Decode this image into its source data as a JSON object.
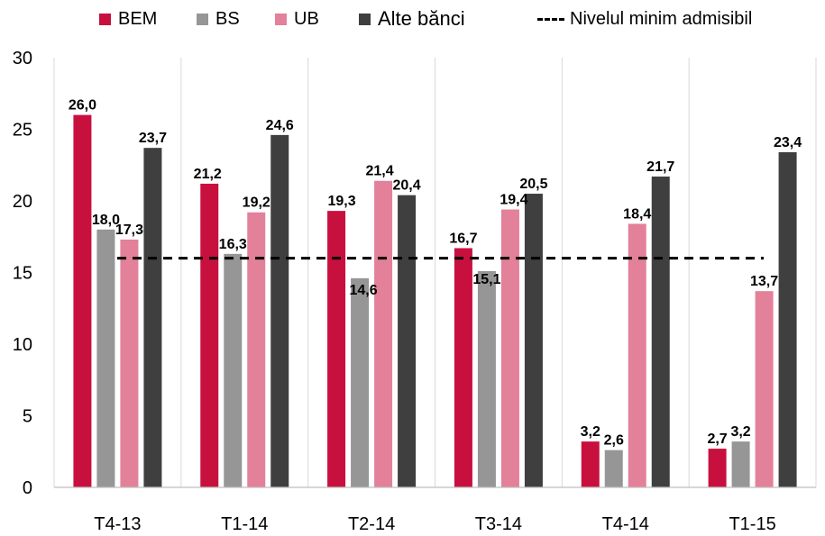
{
  "chart_data": {
    "type": "bar",
    "categories": [
      "T4-13",
      "T1-14",
      "T2-14",
      "T3-14",
      "T4-14",
      "T1-15"
    ],
    "series": [
      {
        "name": "BEM",
        "color": "#c8103e",
        "values": [
          26.0,
          21.2,
          19.3,
          16.7,
          3.2,
          2.7
        ]
      },
      {
        "name": "BS",
        "color": "#969696",
        "values": [
          18.0,
          16.3,
          14.6,
          15.1,
          2.6,
          3.2
        ]
      },
      {
        "name": "UB",
        "color": "#e3809a",
        "values": [
          17.3,
          19.2,
          21.4,
          19.4,
          18.4,
          13.7
        ]
      },
      {
        "name": "Alte bănci",
        "color": "#3f3f3f",
        "values": [
          23.7,
          24.6,
          20.4,
          20.5,
          21.7,
          23.4
        ]
      }
    ],
    "value_labels": [
      [
        "26,0",
        "21,2",
        "19,3",
        "16,7",
        "3,2",
        "2,7"
      ],
      [
        "18,0",
        "16,3",
        "14,6",
        "15,1",
        "2,6",
        "3,2"
      ],
      [
        "17,3",
        "19,2",
        "21,4",
        "19,4",
        "18,4",
        "13,7"
      ],
      [
        "23,7",
        "24,6",
        "20,4",
        "20,5",
        "21,7",
        "23,4"
      ]
    ],
    "reference_line": {
      "name": "Nivelul minim admisibil",
      "value": 16,
      "style": "dashed",
      "color": "#000000"
    },
    "ylim": [
      0,
      30
    ],
    "yticks": [
      0,
      5,
      10,
      15,
      20,
      25,
      30
    ],
    "grid": "vertical",
    "legend_position": "top",
    "title": "",
    "xlabel": "",
    "ylabel": ""
  }
}
